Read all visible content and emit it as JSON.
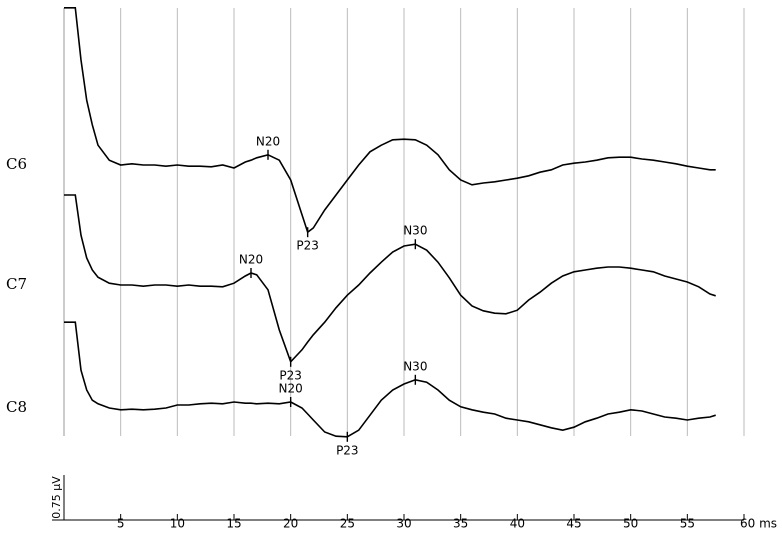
{
  "chart_data": {
    "type": "line",
    "xlim": [
      0,
      60
    ],
    "xticks": [
      5,
      10,
      15,
      20,
      25,
      30,
      35,
      40,
      45,
      50,
      55,
      {
        "value": 60,
        "label": "60 ms"
      }
    ],
    "grid": true,
    "scale_bar": {
      "value": 0.75,
      "label": "0.75 µV"
    },
    "x": [
      0,
      1,
      1.5,
      2,
      2.5,
      3,
      4,
      5,
      6,
      7,
      8,
      9,
      10,
      11,
      12,
      13,
      14,
      15,
      16,
      16.5,
      17,
      18,
      19,
      20,
      21,
      21.5,
      22,
      23,
      24,
      25,
      26,
      27,
      28,
      29,
      30,
      31,
      32,
      33,
      34,
      35,
      36,
      37,
      38,
      39,
      40,
      41,
      42,
      43,
      44,
      45,
      46,
      47,
      48,
      49,
      50,
      51,
      52,
      53,
      54,
      55,
      56,
      57,
      57.5
    ],
    "series": [
      {
        "name": "C6",
        "color": "#000000",
        "values": [
          2.62,
          2.62,
          1.75,
          1.08,
          0.67,
          0.33,
          0.08,
          0,
          0.02,
          0,
          0,
          -0.02,
          0,
          -0.02,
          -0.02,
          -0.03,
          0,
          -0.05,
          0.05,
          0.08,
          0.12,
          0.17,
          0.08,
          -0.25,
          -0.83,
          -1.12,
          -1.05,
          -0.75,
          -0.5,
          -0.25,
          0,
          0.22,
          0.33,
          0.42,
          0.43,
          0.42,
          0.33,
          0.17,
          -0.08,
          -0.25,
          -0.33,
          -0.3,
          -0.28,
          -0.25,
          -0.22,
          -0.18,
          -0.12,
          -0.08,
          0,
          0.03,
          0.05,
          0.08,
          0.12,
          0.13,
          0.13,
          0.1,
          0.08,
          0.05,
          0.02,
          -0.02,
          -0.05,
          -0.08,
          -0.08
        ],
        "annotations": [
          {
            "text": "N20",
            "x": 18,
            "value": 0.17
          },
          {
            "text": "P23",
            "x": 21.5,
            "value": -1.12
          }
        ]
      },
      {
        "name": "C7",
        "color": "#000000",
        "values": [
          1.5,
          1.5,
          0.83,
          0.45,
          0.25,
          0.13,
          0.03,
          0,
          0,
          -0.02,
          0,
          0,
          -0.02,
          0,
          -0.02,
          -0.02,
          -0.03,
          0.03,
          0.15,
          0.2,
          0.17,
          -0.08,
          -0.75,
          -1.28,
          -1.08,
          -0.95,
          -0.83,
          -0.62,
          -0.38,
          -0.17,
          0,
          0.2,
          0.38,
          0.55,
          0.65,
          0.68,
          0.58,
          0.38,
          0.12,
          -0.17,
          -0.35,
          -0.43,
          -0.47,
          -0.48,
          -0.42,
          -0.25,
          -0.12,
          0.03,
          0.15,
          0.22,
          0.25,
          0.28,
          0.3,
          0.3,
          0.28,
          0.25,
          0.22,
          0.15,
          0.1,
          0.05,
          -0.03,
          -0.15,
          -0.18
        ],
        "annotations": [
          {
            "text": "N20",
            "x": 16.5,
            "value": 0.2
          },
          {
            "text": "P23",
            "x": 20,
            "value": -1.28
          },
          {
            "text": "N30",
            "x": 31,
            "value": 0.68
          }
        ]
      },
      {
        "name": "C8",
        "color": "#000000",
        "values": [
          1.43,
          1.43,
          0.63,
          0.3,
          0.13,
          0.07,
          0,
          -0.03,
          -0.02,
          -0.03,
          -0.02,
          0,
          0.05,
          0.05,
          0.07,
          0.08,
          0.07,
          0.1,
          0.08,
          0.08,
          0.07,
          0.08,
          0.07,
          0.1,
          0,
          -0.1,
          -0.2,
          -0.4,
          -0.47,
          -0.48,
          -0.37,
          -0.12,
          0.13,
          0.3,
          0.4,
          0.47,
          0.43,
          0.3,
          0.13,
          0.02,
          -0.03,
          -0.07,
          -0.1,
          -0.17,
          -0.2,
          -0.23,
          -0.28,
          -0.33,
          -0.37,
          -0.32,
          -0.23,
          -0.17,
          -0.1,
          -0.07,
          -0.03,
          -0.05,
          -0.1,
          -0.15,
          -0.17,
          -0.2,
          -0.17,
          -0.15,
          -0.12
        ],
        "annotations": [
          {
            "text": "N20",
            "x": 20,
            "value": 0.1
          },
          {
            "text": "P23",
            "x": 25,
            "value": -0.48
          },
          {
            "text": "N30",
            "x": 31,
            "value": 0.47
          }
        ]
      }
    ]
  }
}
